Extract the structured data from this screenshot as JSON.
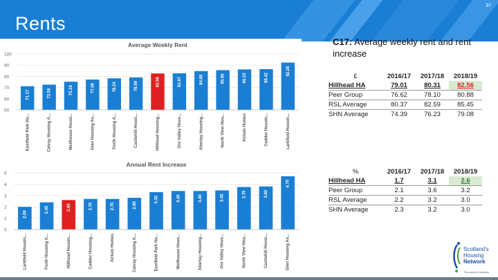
{
  "slide": {
    "title": "Rents",
    "page_number": "37"
  },
  "description": {
    "label": "C17:",
    "text": "Average weekly rent and rent increase"
  },
  "chart_data": [
    {
      "type": "bar",
      "title": "Average Weekly Rent",
      "ylim": [
        50,
        100
      ],
      "yticks": [
        50,
        60,
        70,
        80,
        90,
        100
      ],
      "categories": [
        "Eastfield Park Ho...",
        "Calvay Housing A...",
        "Wellhouse Housi...",
        "Glen Housing As...",
        "Forth Housing A...",
        "Castlehill Housi...",
        "Hillhead Housing...",
        "Ore Valley Hous...",
        "Abertay Housing...",
        "North View Hou...",
        "Atrium Homes",
        "Cadder Housin...",
        "Larkfield Housin..."
      ],
      "values": [
        71.17,
        72.56,
        75.19,
        77.08,
        78.24,
        78.99,
        82.56,
        82.67,
        84.68,
        85.5,
        86.15,
        86.42,
        92.28
      ],
      "labels": [
        "71.17",
        "72.56",
        "75.19",
        "77.08",
        "78.24",
        "78.99",
        "82.56",
        "82.67",
        "84.68",
        "85.50",
        "86.15",
        "86.42",
        "92.28"
      ],
      "colors": [
        "#1a7fd4",
        "#1a7fd4",
        "#1a7fd4",
        "#1a7fd4",
        "#1a7fd4",
        "#1a7fd4",
        "#e02020",
        "#1a7fd4",
        "#1a7fd4",
        "#1a7fd4",
        "#1a7fd4",
        "#1a7fd4",
        "#1a7fd4"
      ]
    },
    {
      "type": "bar",
      "title": "Annual Rent Increase",
      "ylim": [
        0,
        5
      ],
      "yticks": [
        0,
        1,
        2,
        3,
        4,
        5
      ],
      "categories": [
        "Larkfield Housin...",
        "Forth Housing A...",
        "Hillhead Housin...",
        "Cadder Housing...",
        "Atrium Homes",
        "Calvay Housing A...",
        "Eastfield Park Ho...",
        "Wellhouse Hous...",
        "Abertay Housing...",
        "Ore Valley Hous...",
        "North View Hou...",
        "Castlehill Housi...",
        "Glen Housing As..."
      ],
      "values": [
        2.0,
        2.4,
        2.6,
        2.7,
        2.7,
        2.8,
        3.3,
        3.4,
        3.4,
        3.45,
        3.75,
        3.8,
        4.7
      ],
      "labels": [
        "2.00",
        "2.40",
        "2.60",
        "2.70",
        "2.70",
        "2.80",
        "3.30",
        "3.40",
        "3.40",
        "3.45",
        "3.75",
        "3.80",
        "4.70"
      ],
      "colors": [
        "#1a7fd4",
        "#1a7fd4",
        "#e02020",
        "#1a7fd4",
        "#1a7fd4",
        "#1a7fd4",
        "#1a7fd4",
        "#1a7fd4",
        "#1a7fd4",
        "#1a7fd4",
        "#1a7fd4",
        "#1a7fd4",
        "#1a7fd4"
      ]
    }
  ],
  "rent_table": {
    "header": [
      "£",
      "2016/17",
      "2017/18",
      "2018/19"
    ],
    "rows": [
      [
        "Hillhead HA",
        "79.01",
        "80.31",
        "82.56"
      ],
      [
        "Peer Group",
        "76.62",
        "78.10",
        "80.88"
      ],
      [
        "RSL Average",
        "80.37",
        "82.59",
        "85.45"
      ],
      [
        "SHN Average",
        "74.39",
        "76.23",
        "79.08"
      ]
    ]
  },
  "increase_table": {
    "header": [
      "%",
      "2016/17",
      "2017/18",
      "2018/19"
    ],
    "rows": [
      [
        "Hillhead HA",
        "1.7",
        "3.1",
        "2.6"
      ],
      [
        "Peer Group",
        "2.1",
        "3.6",
        "3.2"
      ],
      [
        "RSL Average",
        "2.2",
        "3.2",
        "3.0"
      ],
      [
        "SHN Average",
        "2.3",
        "3.2",
        "3.0"
      ]
    ]
  },
  "logo": {
    "line1": "Scotland's",
    "line2": "Housing",
    "line3": "Network",
    "tagline": "The sector's network"
  },
  "colors": {
    "header": "#1a7fd4",
    "bar": "#1a7fd4",
    "highlight": "#e02020",
    "highlight_bg": "#d9ead3"
  }
}
